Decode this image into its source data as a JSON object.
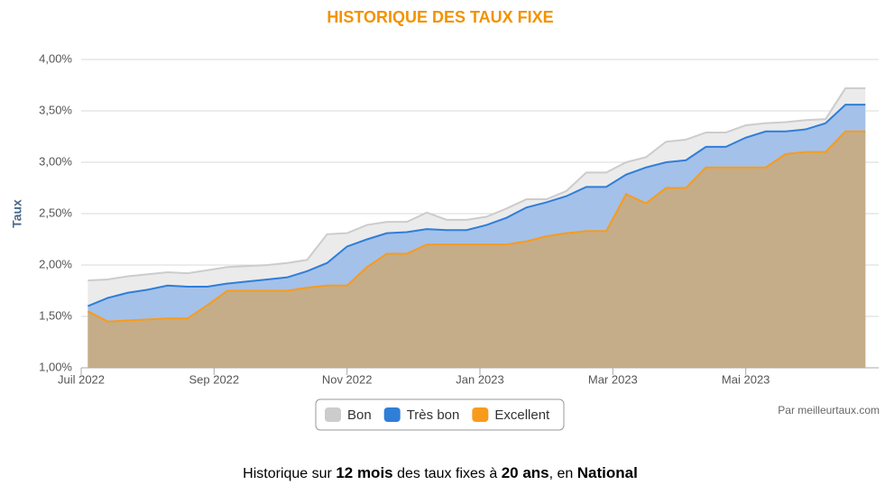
{
  "chart_data": {
    "type": "area",
    "title": "HISTORIQUE DES TAUX FIXE",
    "y_label": "Taux",
    "credit": "Par meilleurtaux.com",
    "footer": [
      "Historique sur ",
      "12 mois",
      " des taux fixes à ",
      "20 ans",
      ", en ",
      "National"
    ],
    "x": [
      0.1,
      0.4,
      0.7,
      1.0,
      1.3,
      1.6,
      1.9,
      2.2,
      2.5,
      2.8,
      3.1,
      3.4,
      3.7,
      4.0,
      4.3,
      4.6,
      4.9,
      5.2,
      5.5,
      5.8,
      6.1,
      6.4,
      6.7,
      7.0,
      7.3,
      7.6,
      7.9,
      8.2,
      8.5,
      8.8,
      9.1,
      9.4,
      9.7,
      10.0,
      10.3,
      10.6,
      10.9,
      11.2,
      11.5,
      11.8
    ],
    "xlim": [
      0,
      12
    ],
    "xticks": [
      {
        "value": 0,
        "label": "Juil 2022"
      },
      {
        "value": 2,
        "label": "Sep 2022"
      },
      {
        "value": 4,
        "label": "Nov 2022"
      },
      {
        "value": 6,
        "label": "Jan 2023"
      },
      {
        "value": 8,
        "label": "Mar 2023"
      },
      {
        "value": 10,
        "label": "Mai 2023"
      }
    ],
    "ylim": [
      1,
      4
    ],
    "yticks": [
      {
        "value": 1,
        "label": "1,00%"
      },
      {
        "value": 1.5,
        "label": "1,50%"
      },
      {
        "value": 2,
        "label": "2,00%"
      },
      {
        "value": 2.5,
        "label": "2,50%"
      },
      {
        "value": 3,
        "label": "3,00%"
      },
      {
        "value": 3.5,
        "label": "3,50%"
      },
      {
        "value": 4,
        "label": "4,00%"
      }
    ],
    "grid": true,
    "legend": "bottom",
    "series": [
      {
        "name": "Bon",
        "color": "#cccccc",
        "fill": "#ebebeb",
        "values": [
          1.85,
          1.86,
          1.89,
          1.91,
          1.93,
          1.92,
          1.95,
          1.98,
          1.99,
          2.0,
          2.02,
          2.05,
          2.3,
          2.31,
          2.39,
          2.42,
          2.42,
          2.51,
          2.44,
          2.44,
          2.47,
          2.55,
          2.64,
          2.64,
          2.72,
          2.9,
          2.9,
          3.0,
          3.05,
          3.2,
          3.22,
          3.29,
          3.29,
          3.36,
          3.38,
          3.39,
          3.41,
          3.42,
          3.72,
          3.72
        ]
      },
      {
        "name": "Très bon",
        "color": "#2f7ed8",
        "fill": "#a4c1e9",
        "values": [
          1.6,
          1.68,
          1.73,
          1.76,
          1.8,
          1.79,
          1.79,
          1.82,
          1.84,
          1.86,
          1.88,
          1.94,
          2.02,
          2.18,
          2.25,
          2.31,
          2.32,
          2.35,
          2.34,
          2.34,
          2.39,
          2.46,
          2.56,
          2.61,
          2.67,
          2.76,
          2.76,
          2.88,
          2.95,
          3.0,
          3.02,
          3.15,
          3.15,
          3.24,
          3.3,
          3.3,
          3.32,
          3.38,
          3.56,
          3.56
        ]
      },
      {
        "name": "Excellent",
        "color": "#f89b1c",
        "fill": "#c5ad89",
        "values": [
          1.55,
          1.45,
          1.46,
          1.47,
          1.48,
          1.48,
          1.61,
          1.75,
          1.75,
          1.75,
          1.75,
          1.78,
          1.8,
          1.8,
          1.98,
          2.11,
          2.11,
          2.2,
          2.2,
          2.2,
          2.2,
          2.2,
          2.23,
          2.28,
          2.31,
          2.33,
          2.33,
          2.69,
          2.6,
          2.75,
          2.75,
          2.95,
          2.95,
          2.95,
          2.95,
          3.08,
          3.1,
          3.1,
          3.3,
          3.3
        ]
      }
    ]
  }
}
